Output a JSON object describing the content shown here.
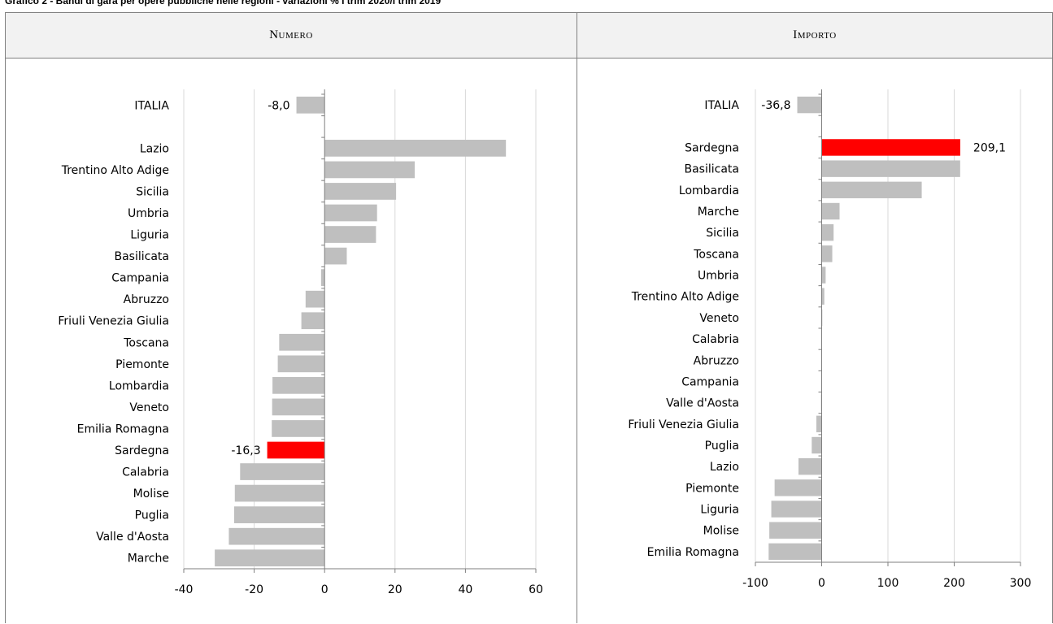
{
  "page_title": "Grafico 2 - Bandi di gara per opere pubbliche nelle regioni - variazioni % I trim 2020/I trim 2019",
  "colors": {
    "bar": "#bfbfbf",
    "highlight": "#ff0000",
    "grid": "#d9d9d9",
    "axis": "#7f7f7f"
  },
  "chart_data": [
    {
      "type": "bar",
      "orientation": "horizontal",
      "title": "Numero",
      "categories": [
        "ITALIA",
        "",
        "Lazio",
        "Trentino Alto Adige",
        "Sicilia",
        "Umbria",
        "Liguria",
        "Basilicata",
        "Campania",
        "Abruzzo",
        "Friuli Venezia Giulia",
        "Toscana",
        "Piemonte",
        "Lombardia",
        "Veneto",
        "Emilia Romagna",
        "Sardegna",
        "Calabria",
        "Molise",
        "Puglia",
        "Valle d'Aosta",
        "Marche"
      ],
      "values": [
        -8.0,
        null,
        51.5,
        25.6,
        20.3,
        14.9,
        14.6,
        6.3,
        -1.0,
        -5.4,
        -6.6,
        -12.9,
        -13.3,
        -14.8,
        -14.9,
        -15.0,
        -16.3,
        -24.0,
        -25.5,
        -25.7,
        -27.2,
        -31.2
      ],
      "highlight": [
        "Sardegna"
      ],
      "data_labels": [
        {
          "category": "ITALIA",
          "text": "-8,0"
        },
        {
          "category": "Sardegna",
          "text": "-16,3"
        }
      ],
      "xlim": [
        -40,
        60
      ],
      "xticks": [
        "-40",
        "-20",
        "0",
        "20",
        "40",
        "60"
      ],
      "grid": true
    },
    {
      "type": "bar",
      "orientation": "horizontal",
      "title": "Importo",
      "categories": [
        "ITALIA",
        "",
        "Sardegna",
        "Basilicata",
        "Lombardia",
        "Marche",
        "Sicilia",
        "Toscana",
        "Umbria",
        "Trentino Alto Adige",
        "Veneto",
        "Calabria",
        "Abruzzo",
        "Campania",
        "Valle d'Aosta",
        "Friuli Venezia Giulia",
        "Puglia",
        "Lazio",
        "Piemonte",
        "Liguria",
        "Molise",
        "Emilia Romagna"
      ],
      "values": [
        -36.8,
        null,
        209.1,
        209.0,
        151.0,
        27.0,
        18.0,
        16.0,
        6.0,
        4.0,
        1.0,
        0.5,
        0.0,
        -0.5,
        -1.0,
        -8.0,
        -15.0,
        -35.0,
        -71.0,
        -76.0,
        -79.0,
        -80.0
      ],
      "highlight": [
        "Sardegna"
      ],
      "data_labels": [
        {
          "category": "ITALIA",
          "text": "-36,8"
        },
        {
          "category": "Sardegna",
          "text": "209,1"
        }
      ],
      "xlim": [
        -100,
        300
      ],
      "xticks": [
        "-100",
        "0",
        "100",
        "200",
        "300"
      ],
      "grid": true
    }
  ]
}
